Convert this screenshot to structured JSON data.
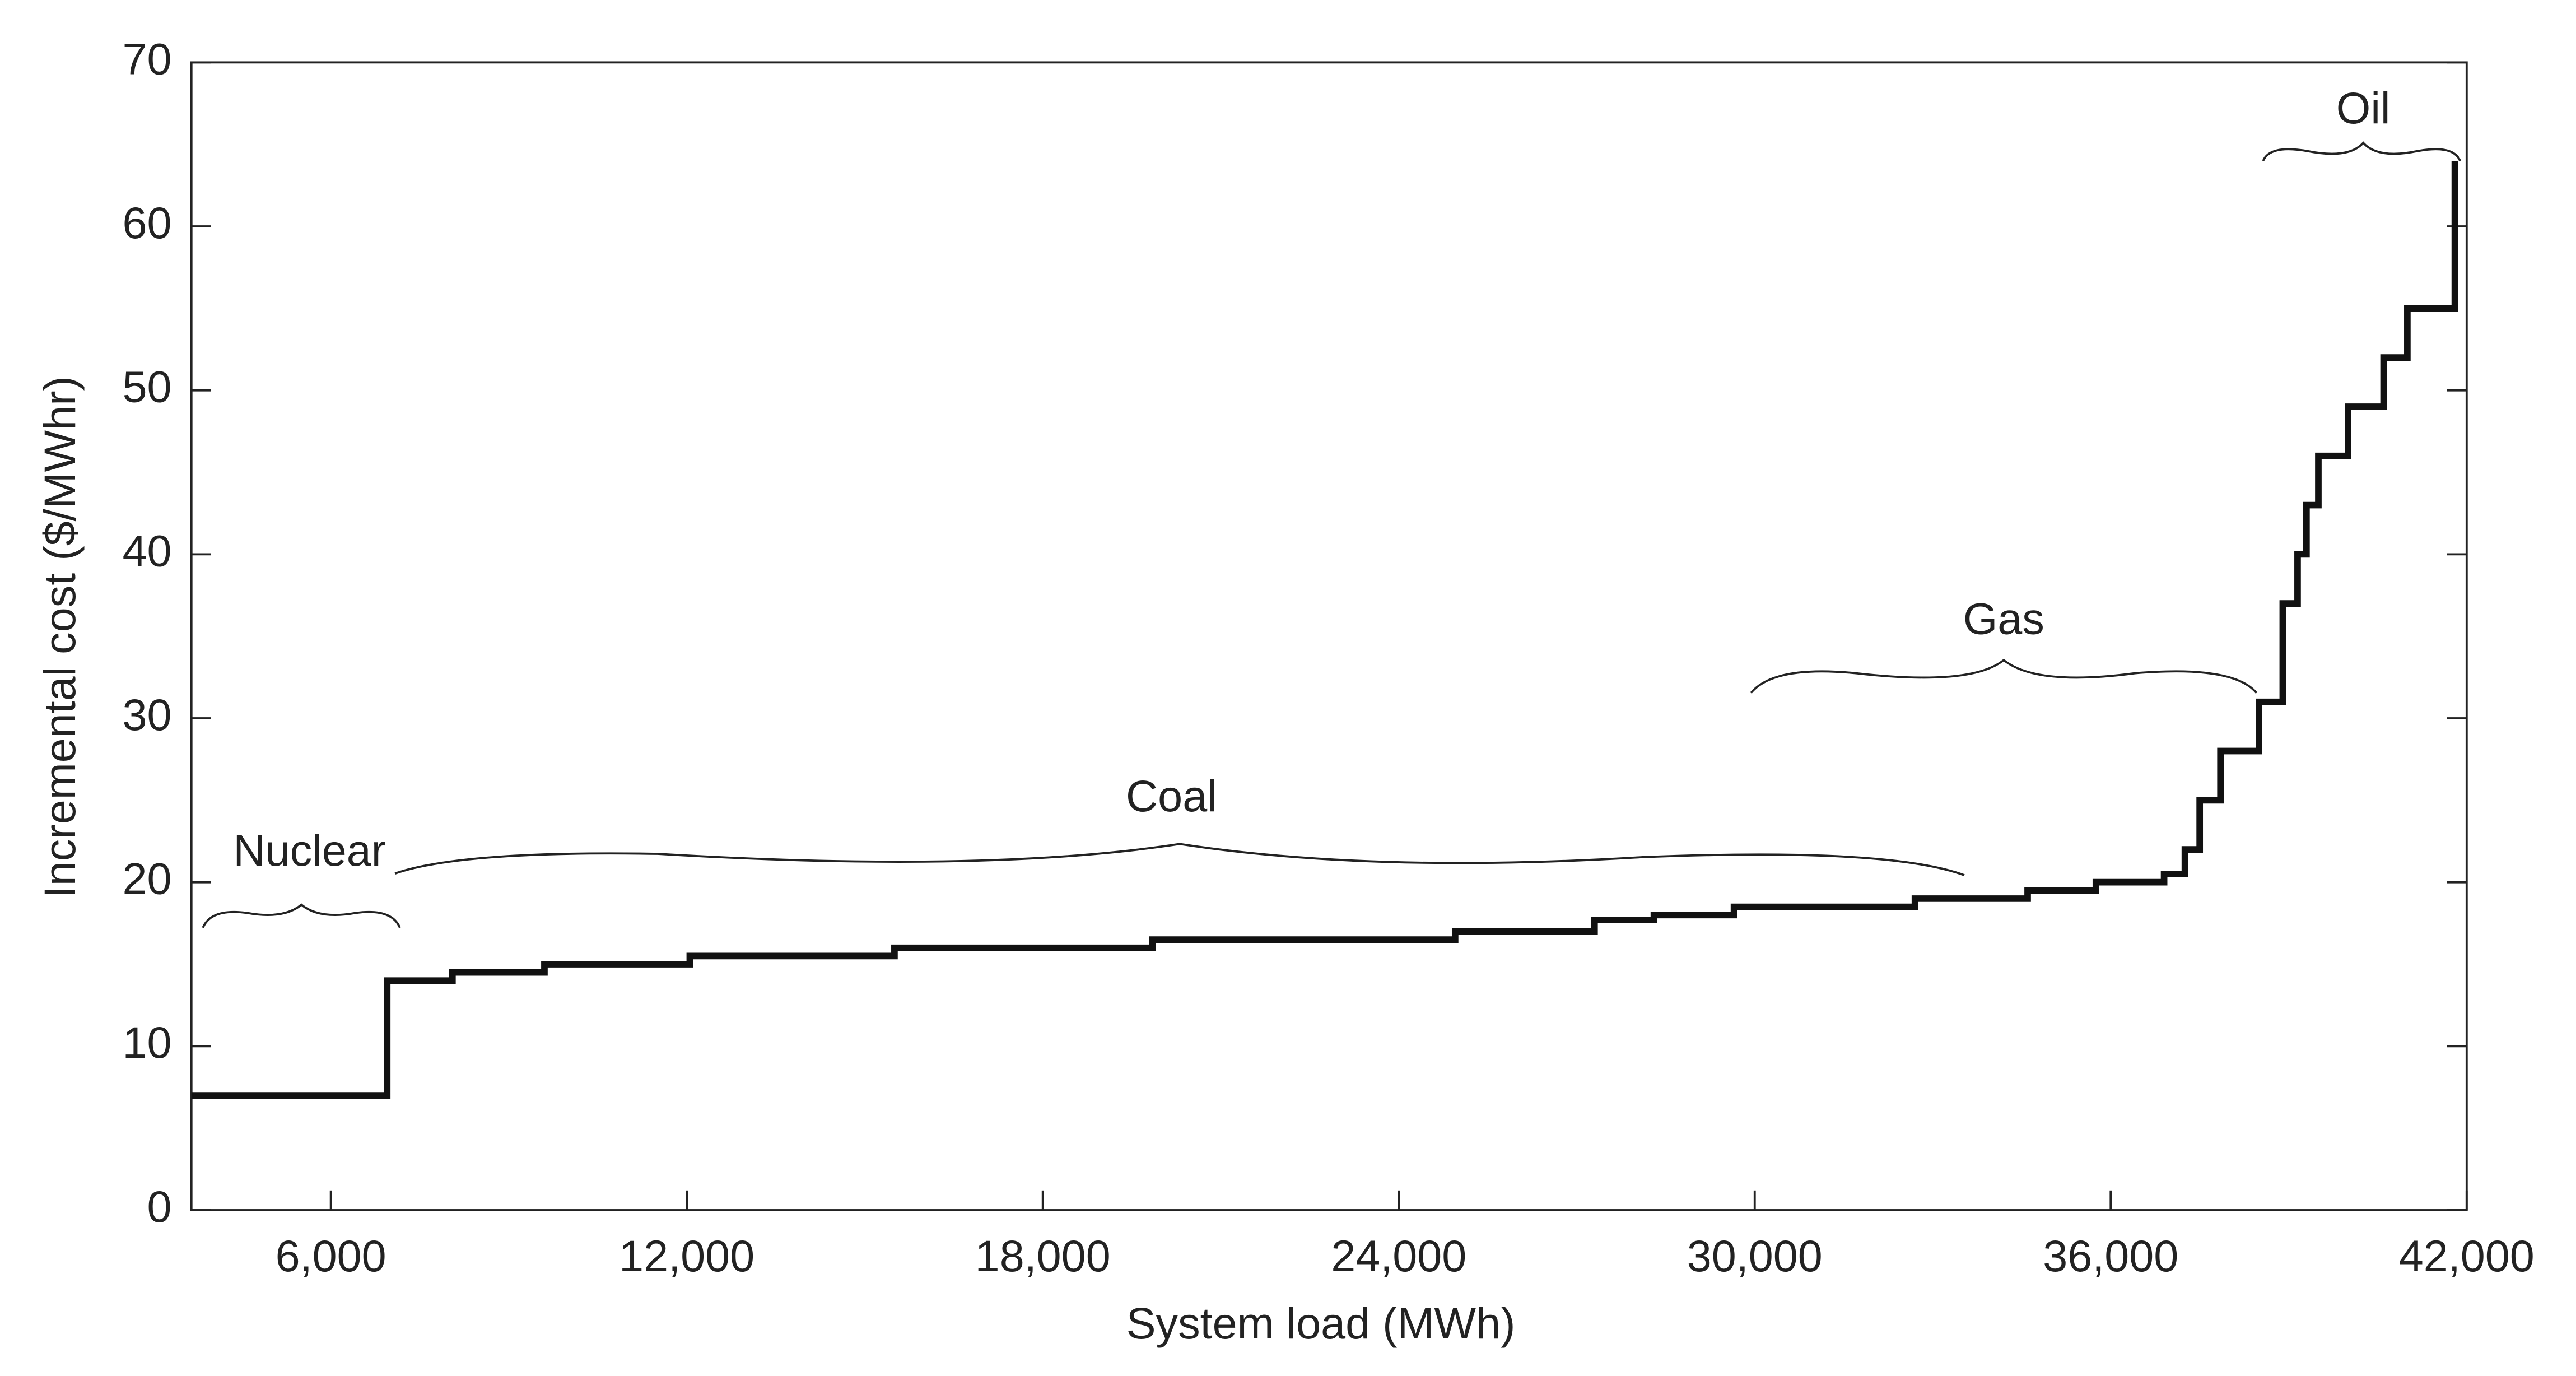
{
  "chart_data": {
    "type": "step",
    "x_label": "System load (MWh)",
    "y_label": "Incremental cost ($/MWhr)",
    "x": [
      3650,
      6950,
      8050,
      9600,
      12050,
      15500,
      19850,
      24950,
      27300,
      28300,
      29650,
      32700,
      34600,
      35750,
      36900,
      37250,
      37500,
      37850,
      38500,
      38900,
      39150,
      39300,
      39500,
      40000,
      40600,
      41000,
      41800
    ],
    "y": [
      7,
      14,
      14.5,
      15,
      15.5,
      16,
      16.5,
      17,
      17.7,
      18,
      18.5,
      19,
      19.5,
      20,
      20.5,
      22,
      25,
      28,
      31,
      37,
      40,
      43,
      46,
      49,
      52,
      55,
      64
    ],
    "color": "#111111",
    "xlim": [
      3650,
      42000
    ],
    "ylim": [
      0,
      70
    ],
    "xticks": [
      {
        "value": 6000,
        "label": "6,000"
      },
      {
        "value": 12000,
        "label": "12,000"
      },
      {
        "value": 18000,
        "label": "18,000"
      },
      {
        "value": 24000,
        "label": "24,000"
      },
      {
        "value": 30000,
        "label": "30,000"
      },
      {
        "value": 36000,
        "label": "36,000"
      },
      {
        "value": 42000,
        "label": "42,000"
      }
    ],
    "yticks": [
      0,
      10,
      20,
      30,
      40,
      50,
      60,
      70
    ],
    "annotations": [
      "Nuclear",
      "Coal",
      "Gas",
      "Oil"
    ]
  }
}
